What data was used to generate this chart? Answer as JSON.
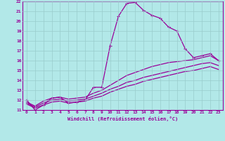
{
  "xlabel": "Windchill (Refroidissement éolien,°C)",
  "bg_color": "#b2e8e8",
  "line_color": "#990099",
  "grid_color": "#99cccc",
  "xlim": [
    -0.5,
    23.5
  ],
  "ylim": [
    11,
    22
  ],
  "yticks": [
    11,
    12,
    13,
    14,
    15,
    16,
    17,
    18,
    19,
    20,
    21,
    22
  ],
  "xticks": [
    0,
    1,
    2,
    3,
    4,
    5,
    6,
    7,
    8,
    9,
    10,
    11,
    12,
    13,
    14,
    15,
    16,
    17,
    18,
    19,
    20,
    21,
    22,
    23
  ],
  "lines": [
    {
      "x": [
        0,
        1,
        2,
        3,
        4,
        5,
        6,
        7,
        8,
        9,
        10,
        11,
        12,
        13,
        14,
        15,
        16,
        17,
        18,
        19,
        20,
        21,
        22,
        23
      ],
      "y": [
        12.0,
        11.0,
        11.5,
        12.2,
        12.3,
        11.7,
        11.8,
        12.0,
        13.3,
        13.3,
        17.5,
        20.5,
        21.8,
        21.9,
        21.1,
        20.6,
        20.3,
        19.4,
        19.0,
        17.2,
        16.3,
        16.5,
        16.7,
        16.0
      ],
      "marker": true,
      "linewidth": 0.9
    },
    {
      "x": [
        0,
        1,
        2,
        3,
        4,
        5,
        6,
        7,
        8,
        9,
        10,
        11,
        12,
        13,
        14,
        15,
        16,
        17,
        18,
        19,
        20,
        21,
        22,
        23
      ],
      "y": [
        11.8,
        11.4,
        11.9,
        12.2,
        12.3,
        12.1,
        12.2,
        12.3,
        12.7,
        13.0,
        13.5,
        14.0,
        14.5,
        14.8,
        15.1,
        15.4,
        15.6,
        15.8,
        15.9,
        16.0,
        16.1,
        16.3,
        16.5,
        16.0
      ],
      "marker": false,
      "linewidth": 0.9
    },
    {
      "x": [
        0,
        1,
        2,
        3,
        4,
        5,
        6,
        7,
        8,
        9,
        10,
        11,
        12,
        13,
        14,
        15,
        16,
        17,
        18,
        19,
        20,
        21,
        22,
        23
      ],
      "y": [
        11.7,
        11.3,
        11.7,
        12.0,
        12.1,
        11.9,
        12.0,
        12.1,
        12.4,
        12.7,
        13.1,
        13.4,
        13.8,
        14.0,
        14.3,
        14.5,
        14.7,
        14.9,
        15.1,
        15.3,
        15.5,
        15.7,
        15.8,
        15.5
      ],
      "marker": false,
      "linewidth": 0.9
    },
    {
      "x": [
        0,
        1,
        2,
        3,
        4,
        5,
        6,
        7,
        8,
        9,
        10,
        11,
        12,
        13,
        14,
        15,
        16,
        17,
        18,
        19,
        20,
        21,
        22,
        23
      ],
      "y": [
        11.6,
        11.2,
        11.5,
        11.8,
        11.9,
        11.7,
        11.8,
        11.9,
        12.2,
        12.4,
        12.8,
        13.1,
        13.4,
        13.6,
        13.9,
        14.1,
        14.3,
        14.5,
        14.7,
        14.9,
        15.0,
        15.2,
        15.4,
        15.1
      ],
      "marker": false,
      "linewidth": 0.9
    }
  ]
}
